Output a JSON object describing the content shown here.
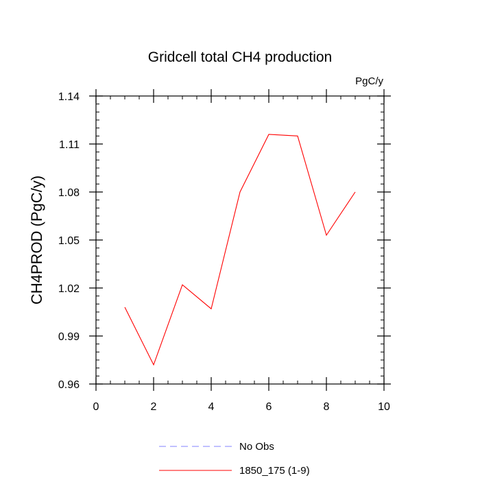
{
  "chart_data": {
    "type": "line",
    "title": "Gridcell total CH4 production",
    "units_label": "PgC/y",
    "ylabel": "CH4PROD  (PgC/y)",
    "xlabel": "",
    "xlim": [
      0,
      10
    ],
    "ylim": [
      0.96,
      1.14
    ],
    "x_ticks": [
      0,
      2,
      4,
      6,
      8,
      10
    ],
    "x_tick_labels": [
      "0",
      "2",
      "4",
      "6",
      "8",
      "10"
    ],
    "x_minor_step": 0.5,
    "y_ticks": [
      0.96,
      0.99,
      1.02,
      1.05,
      1.08,
      1.11,
      1.14
    ],
    "y_tick_labels": [
      "0.96",
      "0.99",
      "1.02",
      "1.05",
      "1.08",
      "1.11",
      "1.14"
    ],
    "y_minor_step": 0.005,
    "grid": false,
    "legend_position": "bottom-center",
    "series": [
      {
        "name": "No Obs",
        "color": "#8080ff",
        "dash": "dashed",
        "x": [],
        "y": []
      },
      {
        "name": "1850_175 (1-9)",
        "color": "#ff0000",
        "dash": "solid",
        "x": [
          1,
          2,
          3,
          4,
          5,
          6,
          7,
          8,
          9
        ],
        "y": [
          1.008,
          0.972,
          1.022,
          1.007,
          1.08,
          1.116,
          1.115,
          1.053,
          1.08
        ]
      }
    ]
  }
}
